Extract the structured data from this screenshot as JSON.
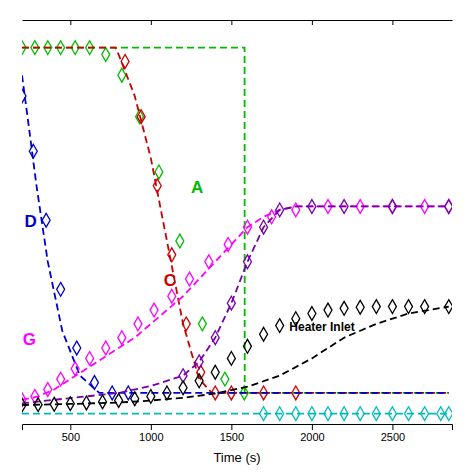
{
  "chart_data": {
    "type": "line",
    "xlabel": "Time (s)",
    "xlim": [
      200,
      2870
    ],
    "ylim": [
      -0.05,
      1.12
    ],
    "xticks": [
      500,
      1000,
      1500,
      2000,
      2500
    ],
    "tick_labels": "x",
    "series": [
      {
        "type": "line",
        "line_style": "dashed",
        "color": "#00bb00",
        "x": [
          200,
          1580,
          1582,
          1583,
          2850
        ],
        "values": [
          1.04,
          1.04,
          1.04,
          0.04,
          0.04
        ]
      },
      {
        "type": "scatter",
        "marker": "diamond",
        "color": "#00bb00",
        "x": [
          200,
          280,
          360,
          440,
          530,
          620,
          720,
          820,
          930,
          1050,
          1180,
          1320,
          1460,
          1580
        ],
        "values": [
          1.04,
          1.04,
          1.04,
          1.04,
          1.04,
          1.04,
          1.02,
          0.96,
          0.84,
          0.68,
          0.48,
          0.24,
          0.08,
          0.04
        ]
      },
      {
        "type": "line",
        "line_style": "dashed",
        "color": "#cc0000",
        "x": [
          200,
          780,
          800,
          900,
          1000,
          1100,
          1200,
          1300,
          1380,
          1382,
          1400,
          2850
        ],
        "values": [
          1.04,
          1.04,
          1.02,
          0.9,
          0.72,
          0.48,
          0.24,
          0.08,
          0.04,
          0.04,
          0.04,
          0.04
        ]
      },
      {
        "type": "scatter",
        "marker": "diamond",
        "color": "#cc0000",
        "x": [
          840,
          940,
          1040,
          1130,
          1220,
          1310,
          1400,
          1500,
          1700,
          1900
        ],
        "values": [
          1.0,
          0.84,
          0.64,
          0.44,
          0.24,
          0.1,
          0.04,
          0.04,
          0.04,
          0.04
        ]
      },
      {
        "type": "line",
        "line_style": "dashed",
        "color": "#0000cc",
        "x": [
          200,
          240,
          290,
          360,
          450,
          560,
          680,
          800,
          900,
          2850
        ],
        "values": [
          0.96,
          0.82,
          0.64,
          0.42,
          0.22,
          0.09,
          0.04,
          0.04,
          0.04,
          0.04
        ]
      },
      {
        "type": "scatter",
        "marker": "diamond",
        "color": "#0000cc",
        "x": [
          200,
          270,
          350,
          440,
          540,
          650,
          760,
          860
        ],
        "values": [
          0.9,
          0.74,
          0.54,
          0.34,
          0.17,
          0.07,
          0.04,
          0.04
        ]
      },
      {
        "type": "line",
        "line_style": "dashed",
        "color": "#ff00ff",
        "x": [
          200,
          300,
          400,
          500,
          600,
          700,
          800,
          900,
          1000,
          1100,
          1200,
          1300,
          1400,
          1500,
          1600,
          1700,
          1800,
          1900,
          2000,
          2200,
          2500,
          2850
        ],
        "values": [
          0.02,
          0.03,
          0.05,
          0.08,
          0.11,
          0.14,
          0.17,
          0.2,
          0.24,
          0.28,
          0.32,
          0.37,
          0.42,
          0.47,
          0.52,
          0.55,
          0.57,
          0.58,
          0.58,
          0.58,
          0.58,
          0.58
        ]
      },
      {
        "type": "scatter",
        "marker": "diamond",
        "color": "#ff00ff",
        "x": [
          200,
          280,
          360,
          440,
          530,
          620,
          720,
          820,
          920,
          1020,
          1130,
          1240,
          1360,
          1480,
          1600,
          1750,
          1900,
          2100,
          2300,
          2500,
          2700,
          2850
        ],
        "values": [
          0.02,
          0.03,
          0.05,
          0.08,
          0.11,
          0.14,
          0.17,
          0.2,
          0.24,
          0.28,
          0.32,
          0.37,
          0.42,
          0.47,
          0.52,
          0.55,
          0.57,
          0.58,
          0.58,
          0.58,
          0.58,
          0.58
        ]
      },
      {
        "type": "line",
        "line_style": "dashed",
        "color": "#7700aa",
        "x": [
          200,
          400,
          600,
          800,
          1000,
          1200,
          1300,
          1400,
          1500,
          1600,
          1700,
          1800,
          1900,
          2000,
          2200,
          2500,
          2850
        ],
        "values": [
          0.01,
          0.02,
          0.03,
          0.04,
          0.06,
          0.09,
          0.13,
          0.2,
          0.3,
          0.42,
          0.52,
          0.57,
          0.58,
          0.58,
          0.58,
          0.58,
          0.58
        ]
      },
      {
        "type": "scatter",
        "marker": "diamond",
        "color": "#7700aa",
        "x": [
          1200,
          1300,
          1400,
          1500,
          1600,
          1700,
          1800,
          2000,
          2200,
          2500,
          2850
        ],
        "values": [
          0.09,
          0.13,
          0.2,
          0.3,
          0.42,
          0.52,
          0.57,
          0.58,
          0.58,
          0.58,
          0.58
        ]
      },
      {
        "type": "line",
        "line_style": "dashed",
        "color": "#000000",
        "x": [
          200,
          500,
          800,
          1000,
          1200,
          1400,
          1600,
          1800,
          2000,
          2200,
          2400,
          2600,
          2850
        ],
        "values": [
          0.005,
          0.008,
          0.012,
          0.018,
          0.026,
          0.038,
          0.058,
          0.09,
          0.14,
          0.2,
          0.24,
          0.27,
          0.29
        ]
      },
      {
        "type": "scatter",
        "marker": "diamond",
        "color": "#000000",
        "x": [
          200,
          300,
          400,
          500,
          600,
          700,
          800,
          900,
          1000,
          1100,
          1200,
          1300,
          1400,
          1500,
          1600,
          1700,
          1800,
          1900,
          2000,
          2100,
          2200,
          2300,
          2400,
          2500,
          2600,
          2700,
          2850
        ],
        "values": [
          0.005,
          0.006,
          0.007,
          0.009,
          0.011,
          0.014,
          0.018,
          0.023,
          0.03,
          0.04,
          0.055,
          0.075,
          0.1,
          0.14,
          0.175,
          0.21,
          0.235,
          0.255,
          0.27,
          0.28,
          0.285,
          0.288,
          0.29,
          0.29,
          0.29,
          0.29,
          0.29
        ]
      },
      {
        "type": "line",
        "line_style": "dashed",
        "color": "#00bbbb",
        "x": [
          200,
          1600,
          1700,
          2850
        ],
        "values": [
          -0.02,
          -0.02,
          -0.02,
          -0.02
        ]
      },
      {
        "type": "scatter",
        "marker": "diamond",
        "color": "#00bbbb",
        "x": [
          1700,
          1800,
          1900,
          2000,
          2100,
          2200,
          2300,
          2400,
          2500,
          2600,
          2700,
          2800,
          2850
        ],
        "values": [
          -0.02,
          -0.02,
          -0.02,
          -0.02,
          -0.02,
          -0.02,
          -0.02,
          -0.02,
          -0.02,
          -0.02,
          -0.02,
          -0.02,
          -0.02
        ]
      }
    ],
    "annotations": [
      {
        "text": "A",
        "x": 1250,
        "y": 0.62,
        "color": "#00bb00"
      },
      {
        "text": "C",
        "x": 1080,
        "y": 0.35,
        "color": "#cc0000"
      },
      {
        "text": "D",
        "x": 215,
        "y": 0.52,
        "color": "#0000cc"
      },
      {
        "text": "G",
        "x": 205,
        "y": 0.18,
        "color": "#ff00ff"
      },
      {
        "text": "Heater Inlet",
        "x": 1860,
        "y": 0.22,
        "color": "#000000"
      }
    ]
  }
}
